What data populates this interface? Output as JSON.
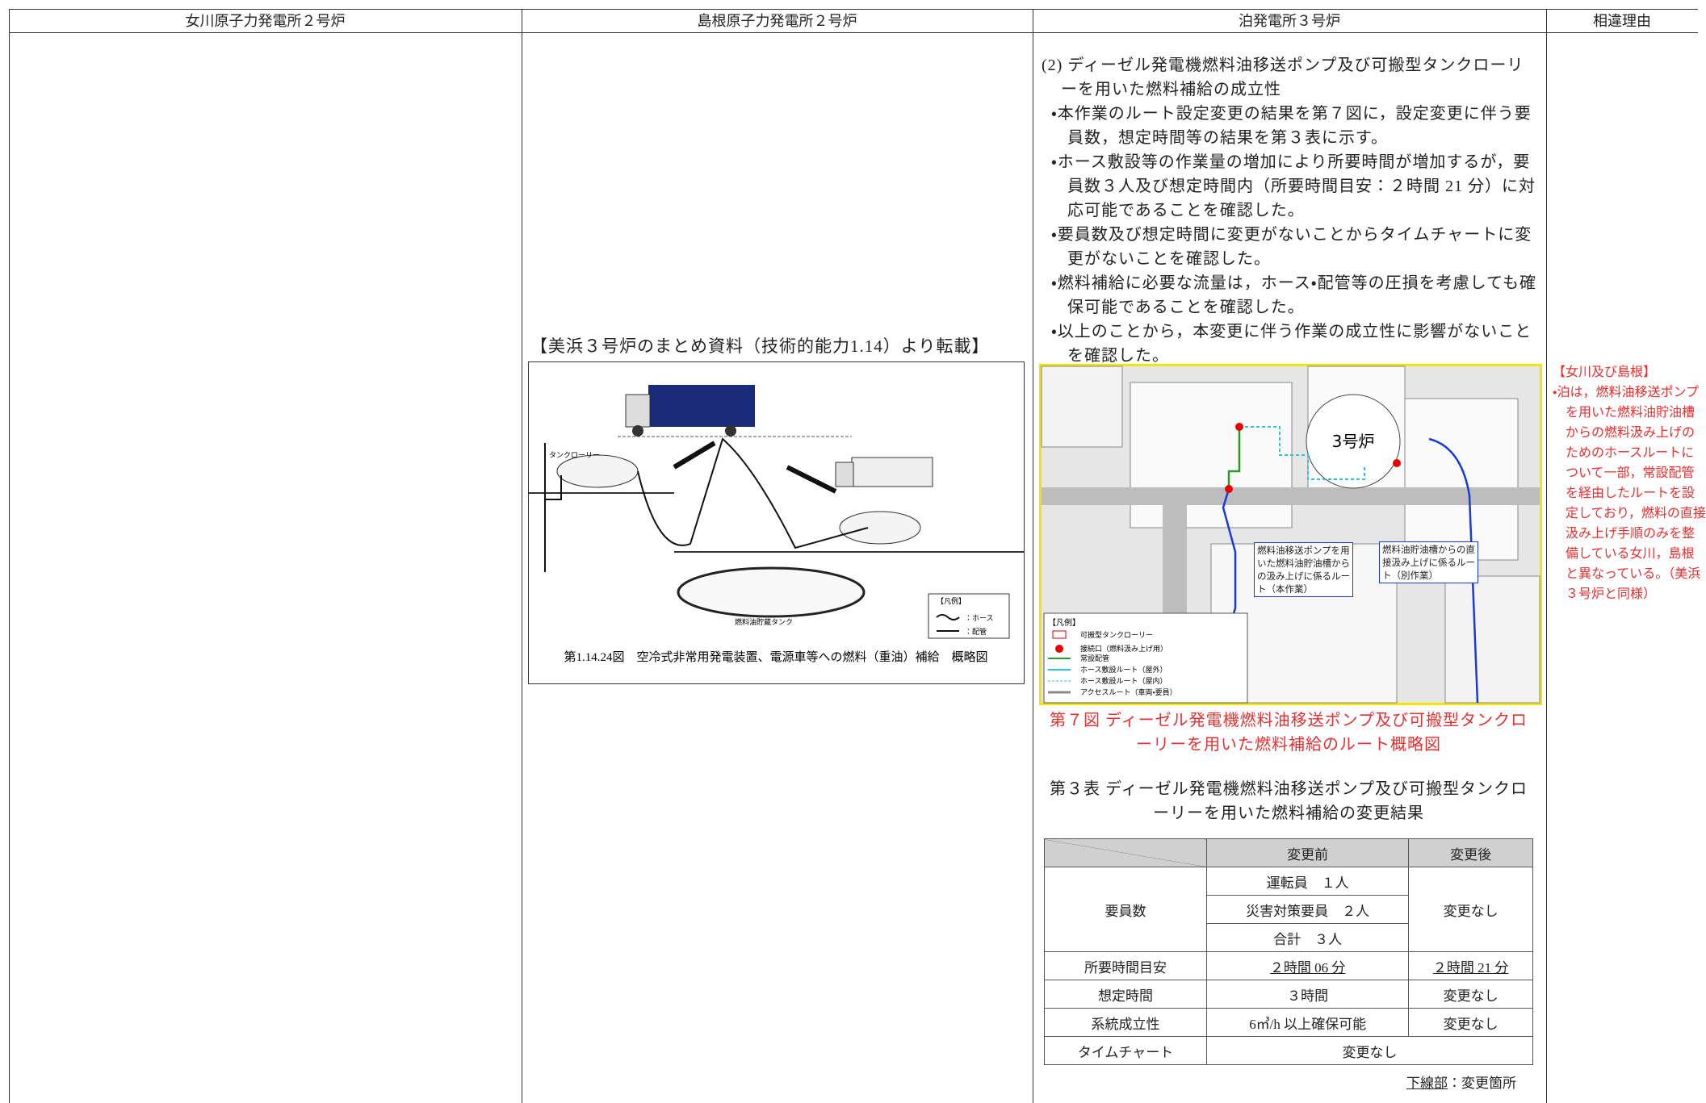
{
  "header": {
    "columns": [
      "女川原子力発電所２号炉",
      "島根原子力発電所２号炉",
      "泊発電所３号炉",
      "相違理由"
    ]
  },
  "shimane": {
    "note": "【美浜３号炉のまとめ資料（技術的能力1.14）より転載】",
    "figure": {
      "caption": "第1.14.24図　空冷式非常用発電装置、電源車等への燃料（重油）補給　概略図",
      "labels": [
        "タンクローリー",
        "燃料油貯蔵タンク",
        "【凡例】",
        "：ホース",
        "：配管"
      ]
    }
  },
  "tomari": {
    "heading": "(2) ディーゼル発電機燃料油移送ポンプ及び可搬型タンクローリーを用いた燃料補給の成立性",
    "bullets": [
      "・本作業のルート設定変更の結果を第７図に，設定変更に伴う要員数，想定時間等の結果を第３表に示す。",
      "・ホース敷設等の作業量の増加により所要時間が増加するが，要員数３人及び想定時間内（所要時間目安：２時間 21 分）に対応可能であることを確認した。",
      "・要員数及び想定時間に変更がないことからタイムチャートに変更がないことを確認した。",
      "・燃料補給に必要な流量は，ホース・配管等の圧損を考慮しても確保可能であることを確認した。",
      "・以上のことから，本変更に伴う作業の成立性に影響がないことを確認した。"
    ],
    "figure": {
      "reactor": "3号炉",
      "callouts": [
        "燃料油移送ポンプを用いた燃料油貯油槽からの汲み上げに係るルート（本作業）",
        "燃料油貯油槽からの直接汲み上げに係るルート（別作業）"
      ],
      "legend_title": "【凡例】",
      "legend": [
        "可搬型タンクローリー",
        "接続口（燃料汲み上げ用）",
        "常設配管",
        "ホース敷設ルート（屋外）",
        "ホース敷設ルート（屋内）",
        "アクセスルート（車両・要員）"
      ],
      "caption": "第７図 ディーゼル発電機燃料油移送ポンプ及び可搬型タンクローリーを用いた燃料補給のルート概略図"
    },
    "table": {
      "title": "第３表 ディーゼル発電機燃料油移送ポンプ及び可搬型タンクローリーを用いた燃料補給の変更結果",
      "head": [
        "変更前",
        "変更後"
      ],
      "staff": {
        "label": "要員数",
        "before": [
          "運転員　１人",
          "災害対策要員　２人",
          "合計　３人"
        ],
        "after": "変更なし"
      },
      "rows": [
        [
          "所要時間目安",
          "２時間 06 分",
          "２時間 21 分"
        ],
        [
          "想定時間",
          "３時間",
          "変更なし"
        ],
        [
          "系統成立性",
          "6㎥/h 以上確保可能",
          "変更なし"
        ]
      ],
      "chart": [
        "タイムチャート",
        "変更なし"
      ],
      "note": {
        "mark": "下線部",
        "text": "：変更箇所"
      }
    }
  },
  "reason": {
    "title": "【女川及び島根】",
    "text": "・泊は，燃料油移送ポンプを用いた燃料油貯油槽からの燃料汲み上げのためのホースルートについて一部，常設配管を経由したルートを設定しており，燃料の直接汲み上げ手順のみを整備している女川，島根と異なっている。（美浜３号炉と同様）"
  }
}
